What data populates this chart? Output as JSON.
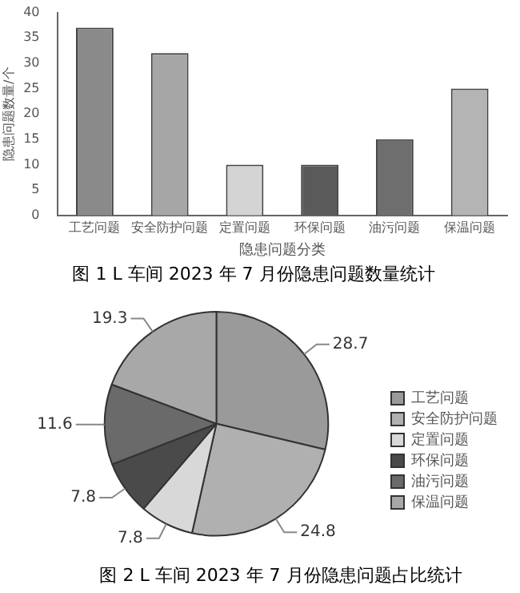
{
  "chart_data": [
    {
      "type": "bar",
      "title": "图 1 L 车间 2023 年 7 月份隐患问题数量统计",
      "xlabel": "隐患问题分类",
      "ylabel": "隐患问题数量/个",
      "categories": [
        "工艺问题",
        "安全防护问题",
        "定置问题",
        "环保问题",
        "油污问题",
        "保温问题"
      ],
      "values": [
        37,
        32,
        10,
        10,
        15,
        25
      ],
      "colors": [
        "#8a8a8a",
        "#a6a6a6",
        "#d4d4d4",
        "#5a5a5a",
        "#6e6e6e",
        "#b4b4b4"
      ],
      "ylim": [
        0,
        40
      ],
      "yticks": [
        0,
        5,
        10,
        15,
        20,
        25,
        30,
        35,
        40
      ],
      "grid": false,
      "legend": false
    },
    {
      "type": "pie",
      "title": "图 2 L 车间 2023 年 7 月份隐患问题占比统计",
      "categories": [
        "工艺问题",
        "安全防护问题",
        "定置问题",
        "环保问题",
        "油污问题",
        "保温问题"
      ],
      "values": [
        28.7,
        24.8,
        7.8,
        7.8,
        11.6,
        19.3
      ],
      "colors": [
        "#9a9a9a",
        "#b0b0b0",
        "#d8d8d8",
        "#4a4a4a",
        "#6a6a6a",
        "#a8a8a8"
      ],
      "data_labels": true,
      "legend": "right"
    }
  ]
}
